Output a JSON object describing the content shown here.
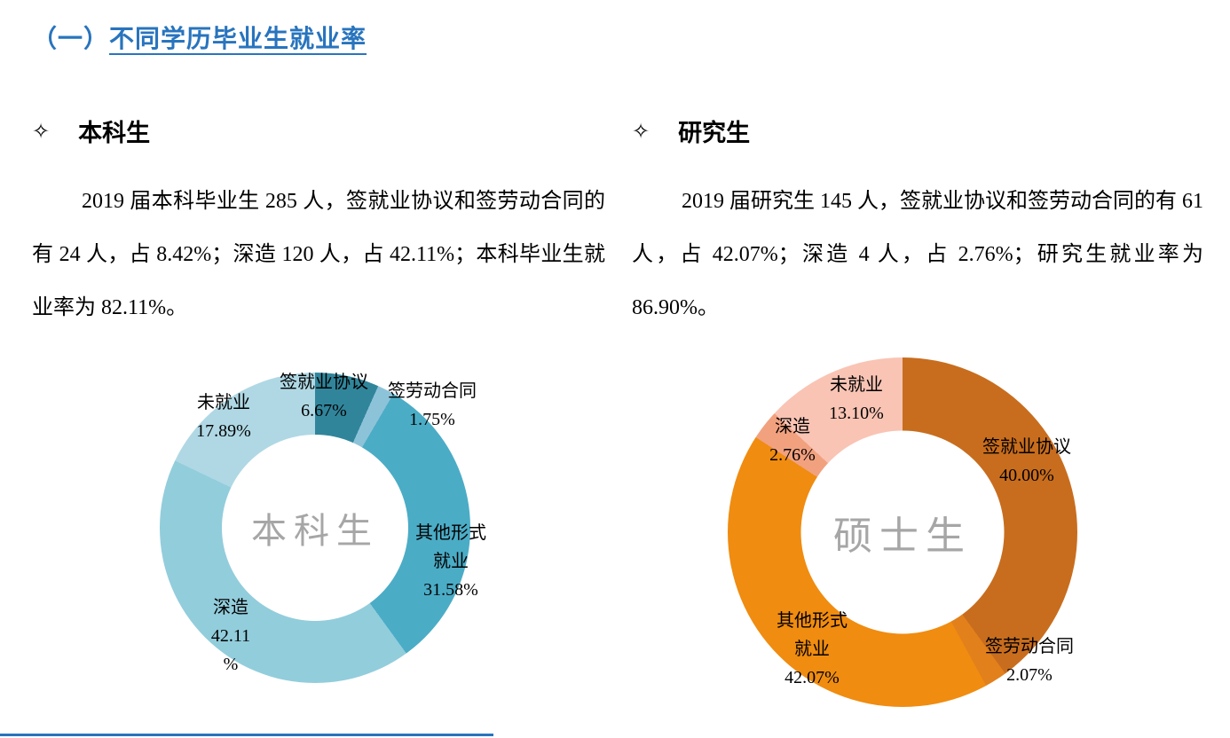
{
  "colors": {
    "heading_blue": "#2874BE",
    "center_label_gray": "#A6A6A6",
    "label_text": "#000000"
  },
  "header": {
    "prefix": "（一）",
    "title": "不同学历毕业生就业率"
  },
  "sections": [
    {
      "bullet": "✧",
      "title": "本科生",
      "paragraph": "2019 届本科毕业生 285 人，签就业协议和签劳动合同的有 24 人，占 8.42%；深造 120 人，占 42.11%；本科毕业生就业率为 82.11%。"
    },
    {
      "bullet": "✧",
      "title": "研究生",
      "paragraph": "2019 届研究生 145 人，签就业协议和签劳动合同的有 61 人，占 42.07%；深造 4 人，占 2.76%；研究生就业率为 86.90%。"
    }
  ],
  "chart_data": [
    {
      "type": "pie",
      "subtype": "donut",
      "title": "本科生",
      "center_label": "本科生",
      "legend_position": "none",
      "categories": [
        "签就业协议",
        "签劳动合同",
        "其他形式就业",
        "深造",
        "未就业"
      ],
      "values": [
        6.67,
        1.75,
        31.58,
        42.11,
        17.89
      ],
      "slices": [
        {
          "label": "签就业协议",
          "value": 6.67,
          "display": [
            "签就业协议",
            "6.67%"
          ],
          "color": "#31859B",
          "label_offset": [
            10,
            -148
          ]
        },
        {
          "label": "签劳动合同",
          "value": 1.75,
          "display": [
            "签劳动合同",
            "1.75%"
          ],
          "color": "#8DC3D8",
          "label_offset": [
            132,
            -138
          ]
        },
        {
          "label": "其他形式就业",
          "value": 31.58,
          "display": [
            "其他形式",
            "就业",
            "31.58%"
          ],
          "color": "#4BACC6",
          "label_offset": [
            153,
            38
          ]
        },
        {
          "label": "深造",
          "value": 42.11,
          "display": [
            "深造",
            "42.11",
            "%"
          ],
          "color": "#92CDDC",
          "label_offset": [
            -95,
            122
          ]
        },
        {
          "label": "未就业",
          "value": 17.89,
          "display": [
            "未就业",
            "17.89%"
          ],
          "color": "#AFD8E4",
          "label_offset": [
            -103,
            -125
          ]
        }
      ]
    },
    {
      "type": "pie",
      "subtype": "donut",
      "title": "硕士生",
      "center_label": "硕士生",
      "legend_position": "none",
      "categories": [
        "签就业协议",
        "签劳动合同",
        "其他形式就业",
        "深造",
        "未就业"
      ],
      "values": [
        40.0,
        2.07,
        42.07,
        2.76,
        13.1
      ],
      "slices": [
        {
          "label": "签就业协议",
          "value": 40.0,
          "display": [
            "签就业协议",
            "40.00%"
          ],
          "color": "#C86D1E",
          "label_offset": [
            140,
            -80
          ]
        },
        {
          "label": "签劳动合同",
          "value": 2.07,
          "display": [
            "签劳动合同",
            "2.07%"
          ],
          "color": "#E2801B",
          "label_offset": [
            143,
            145
          ]
        },
        {
          "label": "其他形式就业",
          "value": 42.07,
          "display": [
            "其他形式",
            "就业",
            "42.07%"
          ],
          "color": "#F08C10",
          "label_offset": [
            -102,
            132
          ]
        },
        {
          "label": "深造",
          "value": 2.76,
          "display": [
            "深造",
            "2.76%"
          ],
          "color": "#F2A17F",
          "label_offset": [
            -124,
            -103
          ]
        },
        {
          "label": "未就业",
          "value": 13.1,
          "display": [
            "未就业",
            "13.10%"
          ],
          "color": "#F9C4B4",
          "label_offset": [
            -52,
            -150
          ]
        }
      ]
    }
  ]
}
